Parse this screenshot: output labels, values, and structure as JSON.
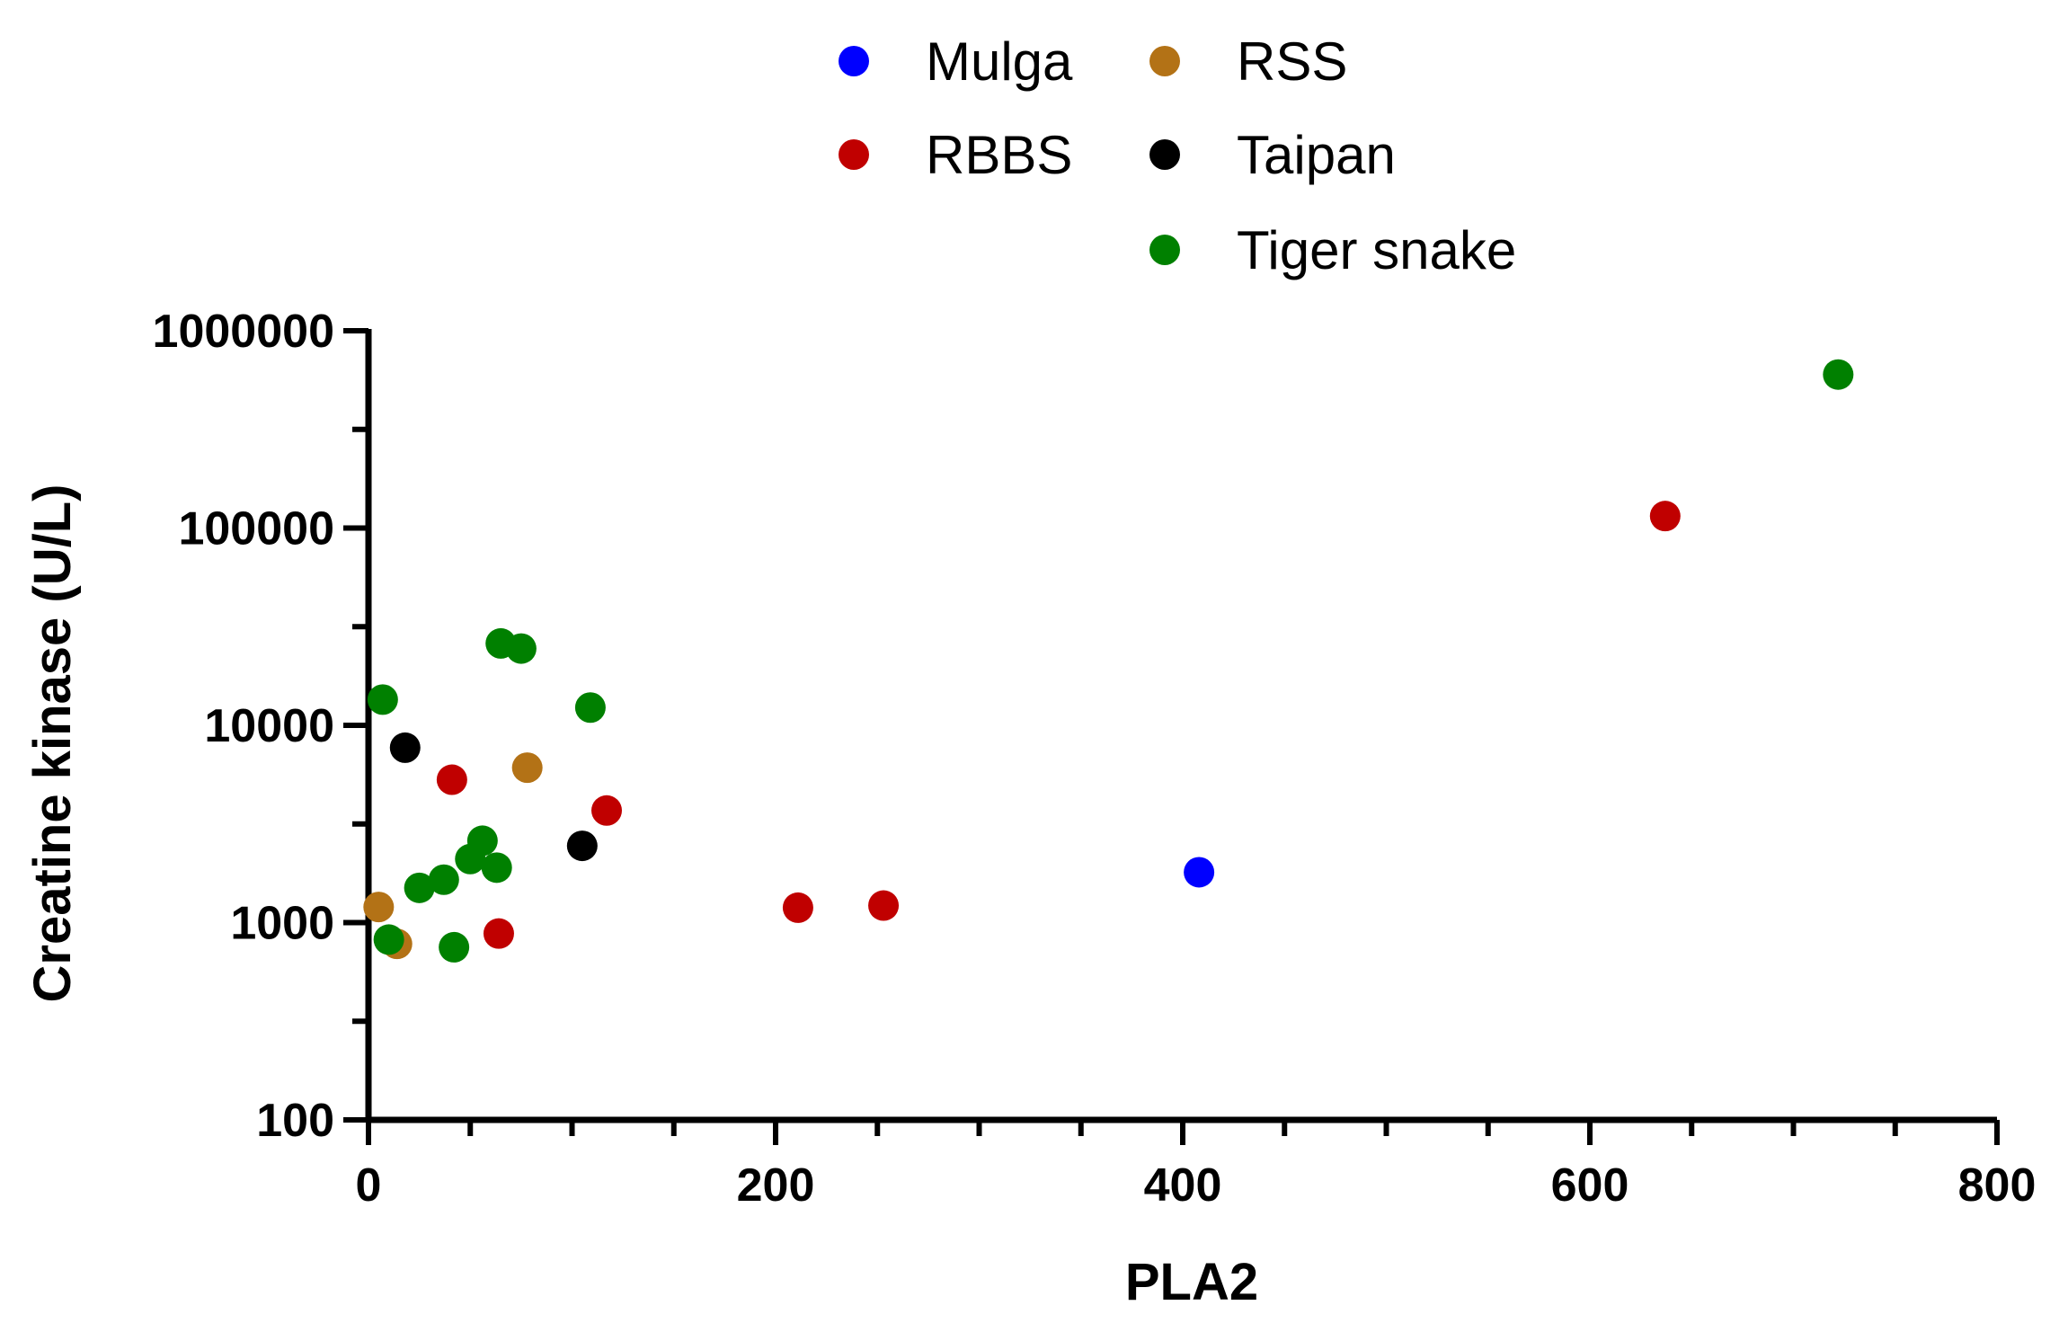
{
  "chart_data": {
    "type": "scatter",
    "title": "",
    "xlabel": "PLA2",
    "ylabel": "Creatine kinase (U/L)",
    "xlim": [
      0,
      800
    ],
    "ylim": [
      100,
      1000000
    ],
    "yscale": "log",
    "x_ticks": [
      0,
      200,
      400,
      600,
      800
    ],
    "x_tick_labels": [
      "0",
      "200",
      "400",
      "600",
      "800"
    ],
    "y_ticks": [
      100,
      1000,
      10000,
      100000,
      1000000
    ],
    "y_tick_labels": [
      "100",
      "1000",
      "10000",
      "100000",
      "1000000"
    ],
    "grid": false,
    "legend_position": "top-center",
    "series": [
      {
        "name": "Mulga",
        "color": "#0000ff",
        "points": [
          [
            408,
            1800
          ]
        ]
      },
      {
        "name": "RSS",
        "color": "#b37216",
        "points": [
          [
            5,
            1200
          ],
          [
            14,
            780
          ],
          [
            78,
            6100
          ]
        ]
      },
      {
        "name": "RBBS",
        "color": "#c00000",
        "points": [
          [
            41,
            5300
          ],
          [
            64,
            880
          ],
          [
            117,
            3700
          ],
          [
            211,
            1190
          ],
          [
            253,
            1220
          ],
          [
            637,
            115000
          ]
        ]
      },
      {
        "name": "Taipan",
        "color": "#000000",
        "points": [
          [
            18,
            7700
          ],
          [
            105,
            2450
          ]
        ]
      },
      {
        "name": "Tiger snake",
        "color": "#008000",
        "points": [
          [
            7,
            13500
          ],
          [
            10,
            820
          ],
          [
            25,
            1500
          ],
          [
            37,
            1650
          ],
          [
            42,
            750
          ],
          [
            50,
            2100
          ],
          [
            56,
            2600
          ],
          [
            63,
            1900
          ],
          [
            65,
            26000
          ],
          [
            75,
            24500
          ],
          [
            109,
            12300
          ],
          [
            722,
            600000
          ]
        ]
      }
    ]
  }
}
